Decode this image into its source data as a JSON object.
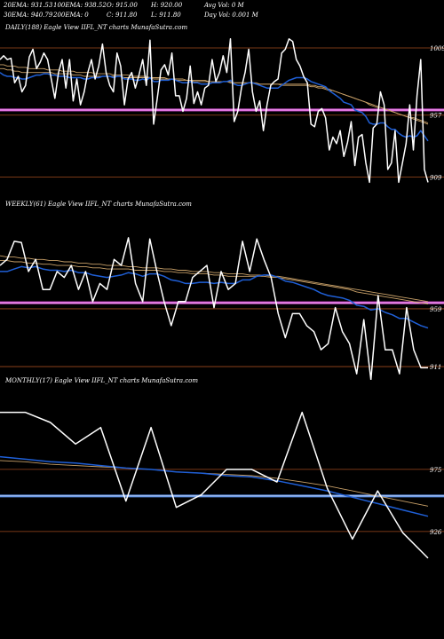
{
  "header": {
    "ema20": "20EMA: 931.53",
    "ema30": "30EMA: 940.79",
    "ema100": "100EMA: 938.52",
    "ema200": "200EMA: 0",
    "open": "O: 915.00",
    "close": "C: 911.80",
    "high": "H: 920.00",
    "low": "L: 911.80",
    "avg_vol": "Avg Vol: 0  M",
    "day_vol": "Day Vol: 0.001 M"
  },
  "colors": {
    "background": "#000000",
    "price": "#ffffff",
    "ema_fast": "#1f5fd6",
    "ema_slow": "#c8a068",
    "daily_band": "#d84fd8",
    "weekly_band": "#d84fd8",
    "monthly_band": "#5b8fe6",
    "level_line": "#a04a1e"
  },
  "chart_data": [
    {
      "type": "line",
      "title": "DAILY(188) Eagle  View  IIFL_NT charts MunafaSutra.com",
      "ylim": [
        895,
        1020
      ],
      "level_labels": [
        {
          "label": "1009",
          "value": 1009
        },
        {
          "label": "957",
          "value": 957
        },
        {
          "label": "909",
          "value": 909
        }
      ],
      "band": 961,
      "series": [
        {
          "role": "price",
          "values": [
            1000,
            1003,
            1000,
            1001,
            982,
            987,
            975,
            980,
            1002,
            1008,
            993,
            998,
            1005,
            1000,
            985,
            970,
            990,
            1000,
            978,
            1000,
            968,
            985,
            965,
            975,
            990,
            1000,
            985,
            995,
            1012,
            990,
            980,
            975,
            1005,
            995,
            965,
            985,
            990,
            978,
            988,
            1000,
            980,
            1015,
            950,
            970,
            992,
            996,
            988,
            1005,
            972,
            972,
            960,
            970,
            995,
            966,
            975,
            965,
            978,
            980,
            1000,
            983,
            990,
            1003,
            990,
            1016,
            952,
            960,
            978,
            990,
            1008,
            975,
            960,
            968,
            945,
            965,
            980,
            983,
            985,
            1005,
            1008,
            1016,
            1014,
            1000,
            995,
            987,
            982,
            950,
            948,
            960,
            962,
            955,
            930,
            940,
            935,
            945,
            925,
            936,
            952,
            918,
            940,
            942,
            920,
            905,
            947,
            950,
            975,
            965,
            915,
            920,
            945,
            905,
            920,
            935,
            965,
            930,
            972,
            1000,
            915,
            905
          ]
        },
        {
          "role": "ema-fast",
          "values": [
            990,
            988,
            987,
            987,
            986,
            986,
            985,
            985,
            986,
            987,
            988,
            988,
            989,
            989,
            988,
            988,
            987,
            987,
            987,
            986,
            986,
            986,
            986,
            985,
            985,
            986,
            986,
            986,
            987,
            987,
            987,
            986,
            987,
            987,
            985,
            985,
            985,
            984,
            984,
            985,
            984,
            986,
            983,
            983,
            984,
            984,
            984,
            985,
            984,
            983,
            982,
            982,
            983,
            982,
            982,
            981,
            981,
            981,
            982,
            982,
            982,
            983,
            983,
            984,
            981,
            980,
            980,
            981,
            982,
            982,
            981,
            980,
            979,
            978,
            978,
            978,
            978,
            980,
            982,
            984,
            985,
            986,
            986,
            986,
            985,
            983,
            982,
            981,
            980,
            979,
            976,
            974,
            972,
            970,
            967,
            966,
            965,
            961,
            960,
            959,
            956,
            951,
            950,
            950,
            951,
            951,
            948,
            946,
            946,
            943,
            941,
            940,
            941,
            940,
            941,
            945,
            941,
            937
          ]
        },
        {
          "role": "ema-slow",
          "values": [
            993,
            993,
            992,
            992,
            991,
            991,
            990,
            990,
            990,
            990,
            990,
            990,
            990,
            990,
            990,
            989,
            989,
            989,
            989,
            989,
            988,
            988,
            988,
            987,
            987,
            987,
            987,
            987,
            987,
            987,
            987,
            987,
            987,
            987,
            986,
            986,
            986,
            986,
            986,
            986,
            986,
            986,
            985,
            985,
            985,
            985,
            985,
            985,
            984,
            984,
            984,
            984,
            984,
            983,
            983,
            983,
            983,
            983,
            983,
            983,
            983,
            983,
            983,
            983,
            982,
            982,
            982,
            982,
            982,
            982,
            982,
            981,
            981,
            981,
            981,
            981,
            981,
            981,
            981,
            981,
            981,
            981,
            981,
            981,
            981,
            980,
            980,
            979,
            979,
            978,
            977,
            976,
            975,
            974,
            973,
            972,
            971,
            970,
            969,
            968,
            967,
            965,
            964,
            963,
            963,
            962,
            961,
            960,
            959,
            958,
            957,
            956,
            955,
            955,
            954,
            953,
            952,
            951
          ]
        },
        {
          "role": "ema-slow-2",
          "values": [
            996,
            996,
            995,
            995,
            995,
            994,
            994,
            994,
            993,
            993,
            993,
            993,
            993,
            992,
            992,
            992,
            992,
            991,
            991,
            991,
            991,
            990,
            990,
            990,
            990,
            990,
            989,
            989,
            989,
            989,
            989,
            988,
            988,
            988,
            988,
            988,
            987,
            987,
            987,
            987,
            987,
            986,
            986,
            986,
            986,
            986,
            985,
            985,
            985,
            985,
            985,
            984,
            984,
            984,
            984,
            984,
            984,
            983,
            983,
            983,
            983,
            983,
            983,
            982,
            982,
            982,
            982,
            982,
            982,
            982,
            981,
            981,
            981,
            981,
            981,
            981,
            981,
            980,
            980,
            980,
            980,
            980,
            980,
            980,
            980,
            979,
            979,
            978,
            978,
            977,
            976,
            976,
            975,
            974,
            973,
            972,
            971,
            970,
            969,
            968,
            967,
            966,
            965,
            964,
            963,
            962,
            961,
            960,
            959,
            958,
            957,
            956,
            955,
            954,
            953,
            952,
            951,
            950
          ]
        }
      ]
    },
    {
      "type": "line",
      "title": "WEEKLY(61) Eagle  View  IIFL_NT charts MunafaSutra.com",
      "ylim": [
        900,
        1040
      ],
      "level_labels": [
        {
          "label": "959",
          "value": 959
        },
        {
          "label": "911",
          "value": 911
        }
      ],
      "band": 964,
      "series": [
        {
          "role": "price",
          "values": [
            995,
            1000,
            1015,
            1014,
            990,
            1000,
            975,
            975,
            990,
            985,
            995,
            975,
            990,
            965,
            980,
            975,
            1000,
            995,
            1018,
            980,
            965,
            1017,
            990,
            965,
            945,
            965,
            965,
            985,
            990,
            995,
            960,
            990,
            975,
            980,
            1015,
            990,
            1017,
            1000,
            985,
            955,
            935,
            955,
            955,
            945,
            940,
            925,
            930,
            960,
            940,
            930,
            905,
            950,
            900,
            970,
            925,
            925,
            905,
            960,
            925,
            910,
            910
          ]
        },
        {
          "role": "ema-fast",
          "values": [
            990,
            990,
            992,
            994,
            993,
            994,
            992,
            991,
            991,
            990,
            991,
            989,
            989,
            987,
            986,
            985,
            986,
            987,
            989,
            988,
            986,
            988,
            988,
            986,
            983,
            982,
            980,
            980,
            981,
            981,
            980,
            981,
            980,
            980,
            983,
            983,
            986,
            987,
            987,
            985,
            982,
            981,
            979,
            977,
            975,
            972,
            970,
            969,
            968,
            966,
            962,
            961,
            958,
            959,
            956,
            954,
            951,
            951,
            948,
            945,
            943
          ]
        },
        {
          "role": "ema-slow",
          "values": [
            999,
            999,
            998,
            998,
            997,
            997,
            996,
            996,
            995,
            995,
            995,
            994,
            994,
            993,
            993,
            992,
            992,
            992,
            992,
            991,
            991,
            991,
            991,
            990,
            990,
            989,
            989,
            988,
            988,
            988,
            987,
            987,
            986,
            986,
            986,
            986,
            986,
            986,
            985,
            985,
            984,
            983,
            982,
            981,
            980,
            979,
            978,
            977,
            976,
            975,
            973,
            972,
            971,
            970,
            969,
            968,
            967,
            966,
            965,
            964,
            963
          ]
        },
        {
          "role": "ema-slow-2",
          "values": [
            1003,
            1002,
            1002,
            1001,
            1001,
            1000,
            1000,
            999,
            999,
            998,
            998,
            997,
            997,
            996,
            996,
            995,
            995,
            995,
            994,
            994,
            993,
            993,
            993,
            992,
            992,
            991,
            991,
            990,
            990,
            990,
            989,
            989,
            988,
            988,
            988,
            987,
            987,
            987,
            986,
            986,
            985,
            984,
            983,
            982,
            981,
            980,
            979,
            978,
            977,
            976,
            975,
            974,
            973,
            972,
            971,
            970,
            969,
            968,
            967,
            966,
            965
          ]
        }
      ]
    },
    {
      "type": "line",
      "title": "MONTHLY(17) Eagle  View  IIFL_NT charts MunafaSutra.com",
      "ylim": [
        900,
        1040
      ],
      "level_labels": [
        {
          "label": "975",
          "value": 975
        },
        {
          "label": "926",
          "value": 926
        }
      ],
      "band": 954,
      "series": [
        {
          "role": "price",
          "values": [
            1020,
            1020,
            1012,
            995,
            1008,
            950,
            1008,
            945,
            955,
            975,
            975,
            965,
            1020,
            960,
            920,
            958,
            925,
            905
          ]
        },
        {
          "role": "ema-fast",
          "values": [
            985,
            983,
            981,
            980,
            978,
            976,
            975,
            973,
            972,
            970,
            969,
            966,
            962,
            958,
            953,
            948,
            943,
            938
          ]
        },
        {
          "role": "ema-slow",
          "values": [
            982,
            981,
            979,
            978,
            977,
            976,
            975,
            973,
            972,
            971,
            970,
            968,
            965,
            962,
            958,
            954,
            950,
            946
          ]
        }
      ]
    }
  ]
}
